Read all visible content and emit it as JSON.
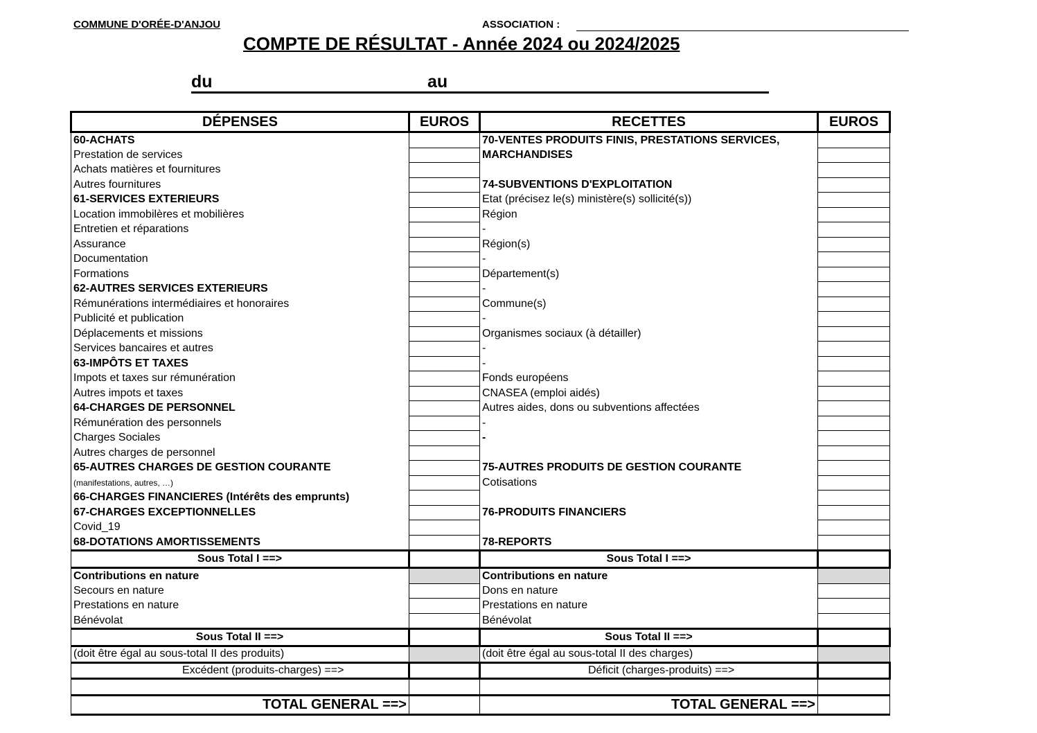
{
  "header": {
    "commune": "COMMUNE D'ORÉE-D'ANJOU",
    "association_label": "ASSOCIATION :",
    "title": "COMPTE DE RÉSULTAT - Année 2024 ou 2024/2025",
    "du": "du",
    "au": "au"
  },
  "table": {
    "headers": {
      "depenses": "DÉPENSES",
      "euros_left": "EUROS",
      "recettes": "RECETTES",
      "euros_right": "EUROS"
    },
    "rows": [
      {
        "left": "60-ACHATS",
        "left_bold": true,
        "right": "70-VENTES PRODUITS FINIS, PRESTATIONS SERVICES,",
        "right_bold": true
      },
      {
        "left": "Prestation de services",
        "right": "MARCHANDISES",
        "right_bold": true
      },
      {
        "left": "Achats matières et fournitures",
        "right": ""
      },
      {
        "left": "Autres fournitures",
        "right": "74-SUBVENTIONS D'EXPLOITATION",
        "right_bold": true
      },
      {
        "left": "61-SERVICES EXTERIEURS",
        "left_bold": true,
        "right": "Etat (précisez le(s) ministère(s) sollicité(s))"
      },
      {
        "left": "Location immobilères et mobilières",
        "right": "Région"
      },
      {
        "left": "Entretien et réparations",
        "right": " -"
      },
      {
        "left": "Assurance",
        "right": "Région(s)"
      },
      {
        "left": "Documentation",
        "right": " -"
      },
      {
        "left": "Formations",
        "right": "Département(s)"
      },
      {
        "left": "62-AUTRES SERVICES EXTERIEURS",
        "left_bold": true,
        "right": " -"
      },
      {
        "left": "Rémunérations intermédiaires et honoraires",
        "right": "Commune(s)"
      },
      {
        "left": "Publicité et publication",
        "right": " -"
      },
      {
        "left": "Déplacements et missions",
        "right": "Organismes sociaux (à détailler)"
      },
      {
        "left": "Services bancaires et autres",
        "right": " -"
      },
      {
        "left": "63-IMPÔTS ET TAXES",
        "left_bold": true,
        "right": " -"
      },
      {
        "left": "Impots et taxes sur rémunération",
        "right": "Fonds européens"
      },
      {
        "left": "Autres impots et taxes",
        "right": "CNASEA (emploi aidés)"
      },
      {
        "left": "64-CHARGES DE PERSONNEL",
        "left_bold": true,
        "right": "Autres aides, dons ou subventions affectées"
      },
      {
        "left": "Rémunération des personnels",
        "right": " -"
      },
      {
        "left": "Charges  Sociales",
        "right": " -",
        "right_bold": true
      },
      {
        "left": "Autres charges de personnel",
        "right": ""
      },
      {
        "left": "65-AUTRES CHARGES DE GESTION COURANTE",
        "left_bold": true,
        "right": "75-AUTRES PRODUITS DE GESTION COURANTE",
        "right_bold": true
      },
      {
        "left": "(manifestations, autres, …)",
        "left_small": true,
        "right": "Cotisations"
      },
      {
        "left": "66-CHARGES FINANCIERES (Intérêts des emprunts)",
        "left_bold": true,
        "right": ""
      },
      {
        "left": "67-CHARGES EXCEPTIONNELLES",
        "left_bold": true,
        "right": "76-PRODUITS FINANCIERS",
        "right_bold": true
      },
      {
        "left": "Covid_19",
        "right": ""
      },
      {
        "left": "68-DOTATIONS AMORTISSEMENTS",
        "left_bold": true,
        "right": "78-REPORTS",
        "right_bold": true
      }
    ],
    "sous_total_1": {
      "left": "Sous Total I ==>",
      "right": "Sous Total I ==>"
    },
    "contributions": {
      "left": "Contributions en nature",
      "right": "Contributions en nature"
    },
    "nature_rows": [
      {
        "left": "Secours en nature",
        "right": "Dons en nature"
      },
      {
        "left": "Prestations en nature",
        "right": "Prestations en nature"
      },
      {
        "left": "Bénévolat",
        "right": "Bénévolat"
      }
    ],
    "sous_total_2": {
      "left": "Sous Total II ==>",
      "right": "Sous Total II ==>"
    },
    "egal": {
      "left": "(doit être égal au sous-total II des produits)",
      "right": "(doit être égal au sous-total II des charges)"
    },
    "resultat": {
      "left": "Excédent (produits-charges)    ==>",
      "right": "Déficit (charges-produits)         ==>"
    },
    "total": {
      "left": "TOTAL GENERAL ==>",
      "right": "TOTAL GENERAL ==>"
    }
  }
}
